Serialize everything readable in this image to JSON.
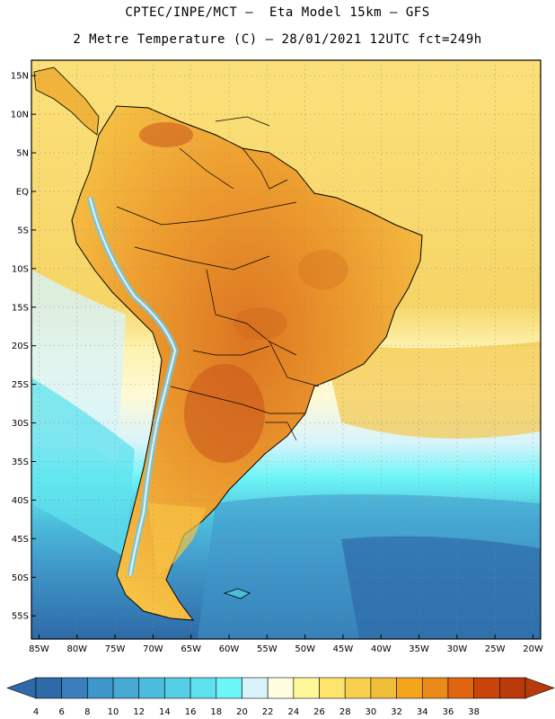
{
  "header": {
    "title_line1": "CPTEC/INPE/MCT –  Eta Model 15km – GFS",
    "title_line2": "2 Metre Temperature (C) – 28/01/2021 12UTC fct=249h"
  },
  "map": {
    "lat_labels": [
      "15N",
      "10N",
      "5N",
      "EQ",
      "5S",
      "10S",
      "15S",
      "20S",
      "25S",
      "30S",
      "35S",
      "40S",
      "45S",
      "50S",
      "55S"
    ],
    "lon_labels": [
      "85W",
      "80W",
      "75W",
      "70W",
      "65W",
      "60W",
      "55W",
      "50W",
      "45W",
      "40W",
      "35W",
      "30W",
      "25W",
      "20W"
    ],
    "lat_values": [
      15,
      10,
      5,
      0,
      -5,
      -10,
      -15,
      -20,
      -25,
      -30,
      -35,
      -40,
      -45,
      -50,
      -55
    ],
    "lon_values": [
      -85,
      -80,
      -75,
      -70,
      -65,
      -60,
      -55,
      -50,
      -45,
      -40,
      -35,
      -30,
      -25,
      -20
    ],
    "extent": {
      "lon_min": -86,
      "lon_max": -19,
      "lat_min": -58,
      "lat_max": 17
    }
  },
  "colorbar": {
    "labels": [
      "4",
      "6",
      "8",
      "10",
      "12",
      "14",
      "16",
      "18",
      "20",
      "22",
      "24",
      "26",
      "28",
      "30",
      "32",
      "34",
      "36",
      "38"
    ],
    "colors": [
      "#2e6aa8",
      "#3a7fbb",
      "#3f96c8",
      "#46a9d2",
      "#4cbcdc",
      "#55cfe6",
      "#5fe2ee",
      "#6ef5f7",
      "#d8f4fb",
      "#fffde0",
      "#fff89a",
      "#fde56b",
      "#f8d04e",
      "#f0bd38",
      "#f4a51c",
      "#ec8a18",
      "#e06510",
      "#c8440a",
      "#b83a08"
    ]
  },
  "colors": {
    "ocean_warm": "#fde56b",
    "ocean_mid": "#d8f4fb",
    "ocean_cold": "#2e6aa8",
    "land_hot": "#d86a1e",
    "coast": "#000000"
  }
}
